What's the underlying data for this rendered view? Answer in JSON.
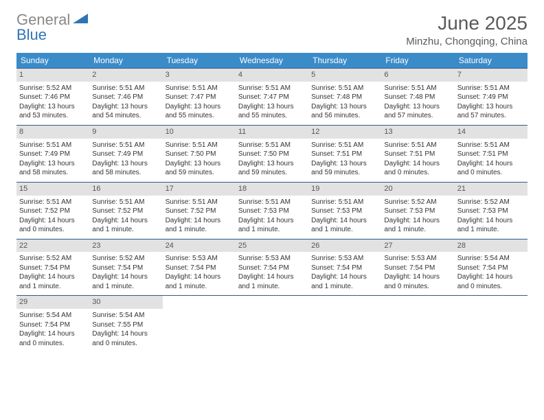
{
  "logo": {
    "part1": "General",
    "part2": "Blue"
  },
  "header": {
    "title": "June 2025",
    "location": "Minzhu, Chongqing, China"
  },
  "headerRow": {
    "bg": "#3b8bc9",
    "fg": "#ffffff"
  },
  "dayNumBg": "#e2e2e2",
  "weekSepColor": "#2e5c8a",
  "textColor": "#333333",
  "dowNames": [
    "Sunday",
    "Monday",
    "Tuesday",
    "Wednesday",
    "Thursday",
    "Friday",
    "Saturday"
  ],
  "days": [
    {
      "n": 1,
      "sr": "5:52 AM",
      "ss": "7:46 PM",
      "dl": "13 hours and 53 minutes."
    },
    {
      "n": 2,
      "sr": "5:51 AM",
      "ss": "7:46 PM",
      "dl": "13 hours and 54 minutes."
    },
    {
      "n": 3,
      "sr": "5:51 AM",
      "ss": "7:47 PM",
      "dl": "13 hours and 55 minutes."
    },
    {
      "n": 4,
      "sr": "5:51 AM",
      "ss": "7:47 PM",
      "dl": "13 hours and 55 minutes."
    },
    {
      "n": 5,
      "sr": "5:51 AM",
      "ss": "7:48 PM",
      "dl": "13 hours and 56 minutes."
    },
    {
      "n": 6,
      "sr": "5:51 AM",
      "ss": "7:48 PM",
      "dl": "13 hours and 57 minutes."
    },
    {
      "n": 7,
      "sr": "5:51 AM",
      "ss": "7:49 PM",
      "dl": "13 hours and 57 minutes."
    },
    {
      "n": 8,
      "sr": "5:51 AM",
      "ss": "7:49 PM",
      "dl": "13 hours and 58 minutes."
    },
    {
      "n": 9,
      "sr": "5:51 AM",
      "ss": "7:49 PM",
      "dl": "13 hours and 58 minutes."
    },
    {
      "n": 10,
      "sr": "5:51 AM",
      "ss": "7:50 PM",
      "dl": "13 hours and 59 minutes."
    },
    {
      "n": 11,
      "sr": "5:51 AM",
      "ss": "7:50 PM",
      "dl": "13 hours and 59 minutes."
    },
    {
      "n": 12,
      "sr": "5:51 AM",
      "ss": "7:51 PM",
      "dl": "13 hours and 59 minutes."
    },
    {
      "n": 13,
      "sr": "5:51 AM",
      "ss": "7:51 PM",
      "dl": "14 hours and 0 minutes."
    },
    {
      "n": 14,
      "sr": "5:51 AM",
      "ss": "7:51 PM",
      "dl": "14 hours and 0 minutes."
    },
    {
      "n": 15,
      "sr": "5:51 AM",
      "ss": "7:52 PM",
      "dl": "14 hours and 0 minutes."
    },
    {
      "n": 16,
      "sr": "5:51 AM",
      "ss": "7:52 PM",
      "dl": "14 hours and 1 minute."
    },
    {
      "n": 17,
      "sr": "5:51 AM",
      "ss": "7:52 PM",
      "dl": "14 hours and 1 minute."
    },
    {
      "n": 18,
      "sr": "5:51 AM",
      "ss": "7:53 PM",
      "dl": "14 hours and 1 minute."
    },
    {
      "n": 19,
      "sr": "5:51 AM",
      "ss": "7:53 PM",
      "dl": "14 hours and 1 minute."
    },
    {
      "n": 20,
      "sr": "5:52 AM",
      "ss": "7:53 PM",
      "dl": "14 hours and 1 minute."
    },
    {
      "n": 21,
      "sr": "5:52 AM",
      "ss": "7:53 PM",
      "dl": "14 hours and 1 minute."
    },
    {
      "n": 22,
      "sr": "5:52 AM",
      "ss": "7:54 PM",
      "dl": "14 hours and 1 minute."
    },
    {
      "n": 23,
      "sr": "5:52 AM",
      "ss": "7:54 PM",
      "dl": "14 hours and 1 minute."
    },
    {
      "n": 24,
      "sr": "5:53 AM",
      "ss": "7:54 PM",
      "dl": "14 hours and 1 minute."
    },
    {
      "n": 25,
      "sr": "5:53 AM",
      "ss": "7:54 PM",
      "dl": "14 hours and 1 minute."
    },
    {
      "n": 26,
      "sr": "5:53 AM",
      "ss": "7:54 PM",
      "dl": "14 hours and 1 minute."
    },
    {
      "n": 27,
      "sr": "5:53 AM",
      "ss": "7:54 PM",
      "dl": "14 hours and 0 minutes."
    },
    {
      "n": 28,
      "sr": "5:54 AM",
      "ss": "7:54 PM",
      "dl": "14 hours and 0 minutes."
    },
    {
      "n": 29,
      "sr": "5:54 AM",
      "ss": "7:54 PM",
      "dl": "14 hours and 0 minutes."
    },
    {
      "n": 30,
      "sr": "5:54 AM",
      "ss": "7:55 PM",
      "dl": "14 hours and 0 minutes."
    }
  ],
  "labels": {
    "sunrise": "Sunrise: ",
    "sunset": "Sunset: ",
    "daylight": "Daylight: "
  },
  "firstDayOffset": 0,
  "totalCells": 35
}
